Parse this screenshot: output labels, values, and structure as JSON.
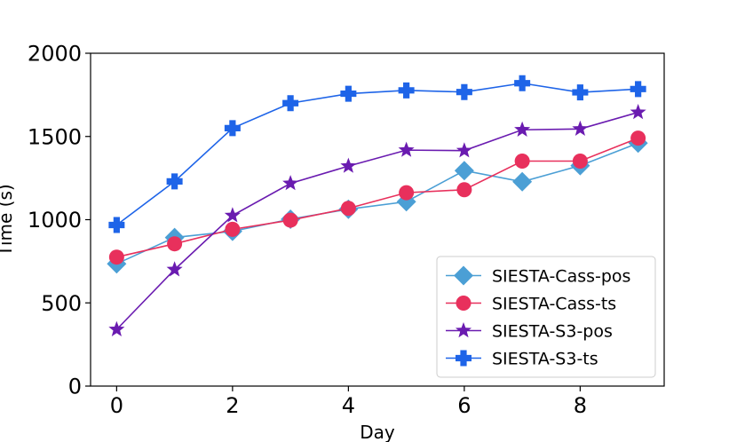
{
  "chart_data": {
    "type": "line",
    "title": "",
    "xlabel": "Day",
    "ylabel": "Time (s)",
    "xlim": [
      -0.45,
      9.45
    ],
    "ylim": [
      0,
      2000
    ],
    "xticks": [
      0,
      2,
      4,
      6,
      8
    ],
    "yticks": [
      0,
      500,
      1000,
      1500,
      2000
    ],
    "grid": false,
    "legend_position": "lower-right",
    "x": [
      0,
      1,
      2,
      3,
      4,
      5,
      6,
      7,
      8,
      9
    ],
    "series": [
      {
        "name": "SIESTA-Cass-pos",
        "color": "#4b9fd5",
        "marker": "diamond",
        "values": [
          735,
          893,
          930,
          1003,
          1063,
          1108,
          1295,
          1228,
          1325,
          1460
        ]
      },
      {
        "name": "SIESTA-Cass-ts",
        "color": "#e8305c",
        "marker": "circle",
        "values": [
          775,
          855,
          942,
          997,
          1068,
          1162,
          1180,
          1352,
          1352,
          1490
        ]
      },
      {
        "name": "SIESTA-S3-pos",
        "color": "#6a1bb0",
        "marker": "star",
        "values": [
          340,
          700,
          1025,
          1218,
          1322,
          1418,
          1415,
          1540,
          1545,
          1645
        ]
      },
      {
        "name": "SIESTA-S3-ts",
        "color": "#1e64e8",
        "marker": "plus",
        "values": [
          968,
          1230,
          1550,
          1700,
          1757,
          1777,
          1767,
          1820,
          1765,
          1785
        ]
      }
    ]
  }
}
